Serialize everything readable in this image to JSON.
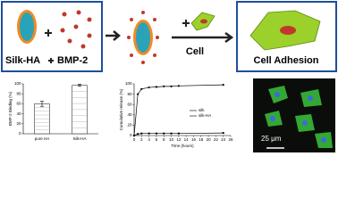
{
  "diagram": {
    "labels": {
      "silk_ha": "Silk-HA",
      "bmp2": "BMP-2",
      "cell": "Cell",
      "cell_adhesion": "Cell Adhesion"
    }
  },
  "micrograph": {
    "scale_label": "25 μm"
  },
  "chart_data": [
    {
      "type": "bar",
      "y_label": "BMP-2 Binding (%)",
      "categories": [
        "pure HA",
        "Silk-HA"
      ],
      "values": [
        60,
        97
      ],
      "errors": [
        5,
        2
      ],
      "color": "#ffffff",
      "ylim": [
        0,
        100
      ],
      "yticks": [
        0,
        20,
        40,
        60,
        80,
        100
      ]
    },
    {
      "type": "line",
      "x_label": "Time (hours)",
      "y_label": "Cumulative release (%)",
      "x": [
        0,
        1,
        2,
        4,
        6,
        8,
        10,
        12,
        24
      ],
      "series": [
        {
          "name": "silk",
          "color": "#000000",
          "values": [
            0,
            3,
            4,
            4,
            4,
            4,
            4,
            4,
            5
          ]
        },
        {
          "name": "silk-HA",
          "color": "#000000",
          "values": [
            0,
            80,
            90,
            93,
            94,
            95,
            95,
            96,
            98
          ]
        }
      ],
      "xlim": [
        0,
        26
      ],
      "ylim": [
        0,
        100
      ],
      "xticks": [
        0,
        2,
        4,
        6,
        8,
        10,
        12,
        14,
        16,
        18,
        20,
        22,
        24,
        26
      ],
      "yticks": [
        0,
        20,
        40,
        60,
        80,
        100
      ]
    }
  ]
}
